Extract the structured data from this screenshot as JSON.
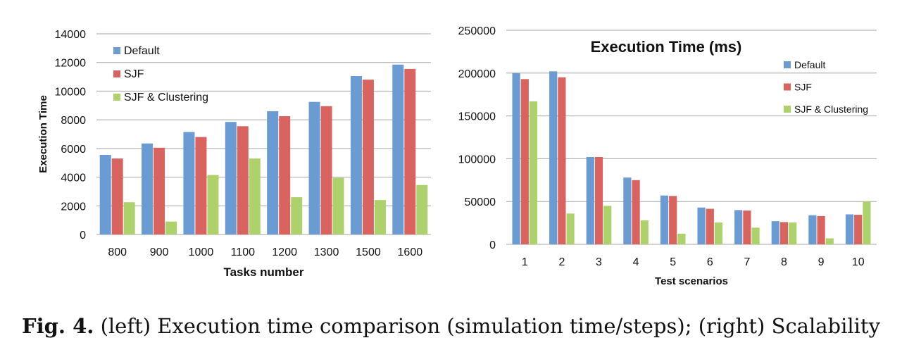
{
  "colors": {
    "Default": "#6a9bd2",
    "SJF": "#d9635f",
    "SJF & Clustering": "#add26c",
    "grid": "#a6a6a6",
    "text": "#111111"
  },
  "chart_data": [
    {
      "type": "bar",
      "title": "",
      "xlabel": "Tasks number",
      "ylabel": "Execution Time",
      "categories": [
        "800",
        "900",
        "1000",
        "1100",
        "1200",
        "1300",
        "1500",
        "1600"
      ],
      "ylim": [
        0,
        14000
      ],
      "yticks": [
        0,
        2000,
        4000,
        6000,
        8000,
        10000,
        12000,
        14000
      ],
      "grid": true,
      "legend": "top-left",
      "series": [
        {
          "name": "Default",
          "values": [
            5550,
            6350,
            7150,
            7850,
            8600,
            9250,
            11050,
            11850
          ]
        },
        {
          "name": "SJF",
          "values": [
            5300,
            6050,
            6800,
            7550,
            8250,
            8950,
            10800,
            11550
          ]
        },
        {
          "name": "SJF & Clustering",
          "values": [
            2250,
            900,
            4150,
            5300,
            2600,
            3950,
            2400,
            3450
          ]
        }
      ]
    },
    {
      "type": "bar",
      "title": "Execution Time (ms)",
      "xlabel": "Test scenarios",
      "ylabel": "",
      "categories": [
        "1",
        "2",
        "3",
        "4",
        "5",
        "6",
        "7",
        "8",
        "9",
        "10"
      ],
      "ylim": [
        0,
        250000
      ],
      "yticks": [
        0,
        50000,
        100000,
        150000,
        200000,
        250000
      ],
      "grid": true,
      "legend": "top-right",
      "series": [
        {
          "name": "Default",
          "values": [
            200000,
            202000,
            102000,
            78000,
            57000,
            43000,
            40000,
            27000,
            34000,
            35000
          ]
        },
        {
          "name": "SJF",
          "values": [
            193000,
            195000,
            102000,
            75000,
            56500,
            41500,
            39500,
            26000,
            33000,
            34500
          ]
        },
        {
          "name": "SJF & Clustering",
          "values": [
            167000,
            36000,
            45000,
            28000,
            12500,
            25500,
            19500,
            25500,
            7000,
            50000
          ]
        }
      ]
    }
  ],
  "caption": {
    "label": "Fig. 4.",
    "text": " (left) Execution time comparison (simulation time/steps); (right) Scalability"
  }
}
